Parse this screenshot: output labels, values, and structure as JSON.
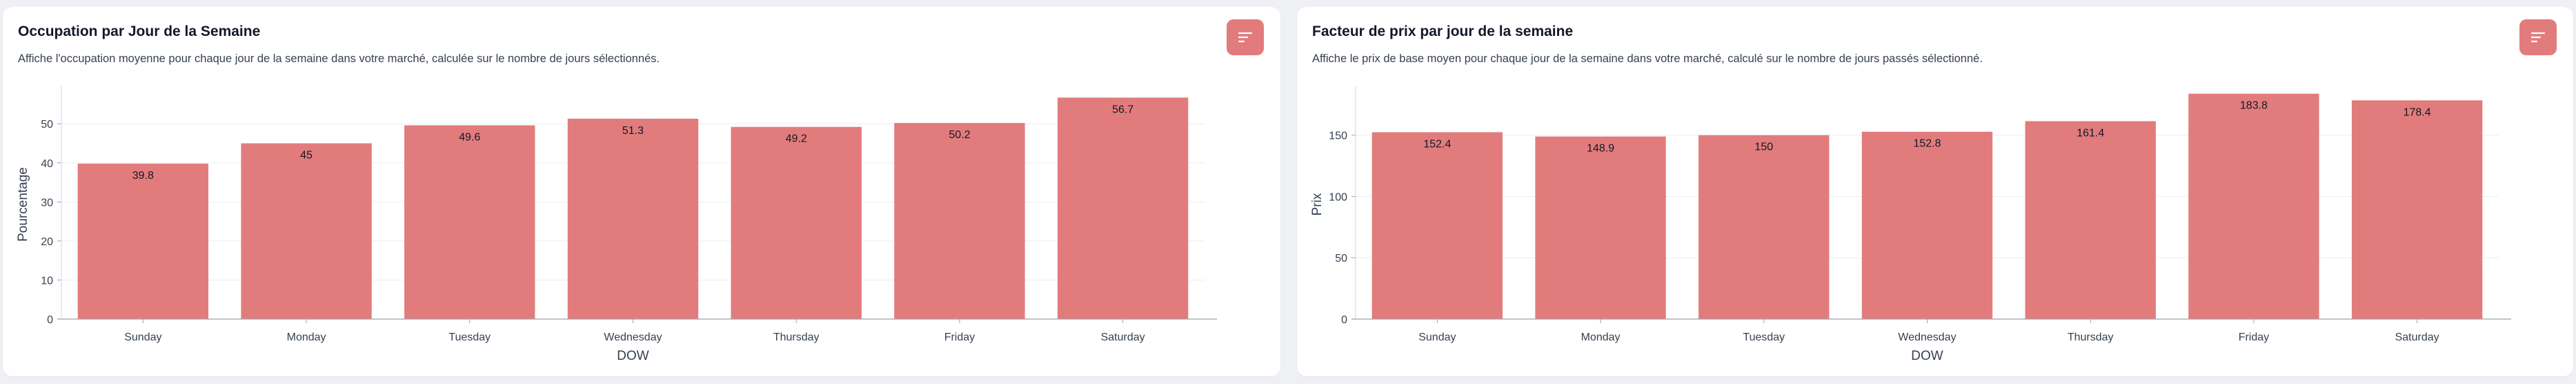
{
  "colors": {
    "bar": "#e27c7c",
    "background": "#eef0f3",
    "card": "#ffffff"
  },
  "cards": [
    {
      "title": "Occupation par Jour de la Semaine",
      "subtitle": "Affiche l'occupation moyenne pour chaque jour de la semaine dans votre marché, calculée sur le nombre de jours sélectionnés.",
      "filter_icon": "filter-lines-icon"
    },
    {
      "title": "Facteur de prix par jour de la semaine",
      "subtitle": "Affiche le prix de base moyen pour chaque jour de la semaine dans votre marché, calculé sur le nombre de jours passés sélectionné.",
      "filter_icon": "filter-lines-icon"
    }
  ],
  "chart_data": [
    {
      "type": "bar",
      "categories": [
        "Sunday",
        "Monday",
        "Tuesday",
        "Wednesday",
        "Thursday",
        "Friday",
        "Saturday"
      ],
      "values": [
        39.8,
        45,
        49.6,
        51.3,
        49.2,
        50.2,
        56.7
      ],
      "value_labels": [
        "39.8",
        "45",
        "49.6",
        "51.3",
        "49.2",
        "50.2",
        "56.7"
      ],
      "xlabel": "DOW",
      "ylabel": "Pourcentage",
      "ylim": [
        0,
        58.7
      ],
      "yticks": [
        0,
        10,
        20,
        30,
        40,
        50
      ],
      "grid": true
    },
    {
      "type": "bar",
      "categories": [
        "Sunday",
        "Monday",
        "Tuesday",
        "Wednesday",
        "Thursday",
        "Friday",
        "Saturday"
      ],
      "values": [
        152.4,
        148.9,
        150,
        152.8,
        161.4,
        183.8,
        178.4
      ],
      "value_labels": [
        "152.4",
        "148.9",
        "150",
        "152.8",
        "161.4",
        "183.8",
        "178.4"
      ],
      "xlabel": "DOW",
      "ylabel": "Prix",
      "ylim": [
        0,
        187
      ],
      "yticks": [
        0,
        50,
        100,
        150
      ],
      "grid": true
    }
  ]
}
